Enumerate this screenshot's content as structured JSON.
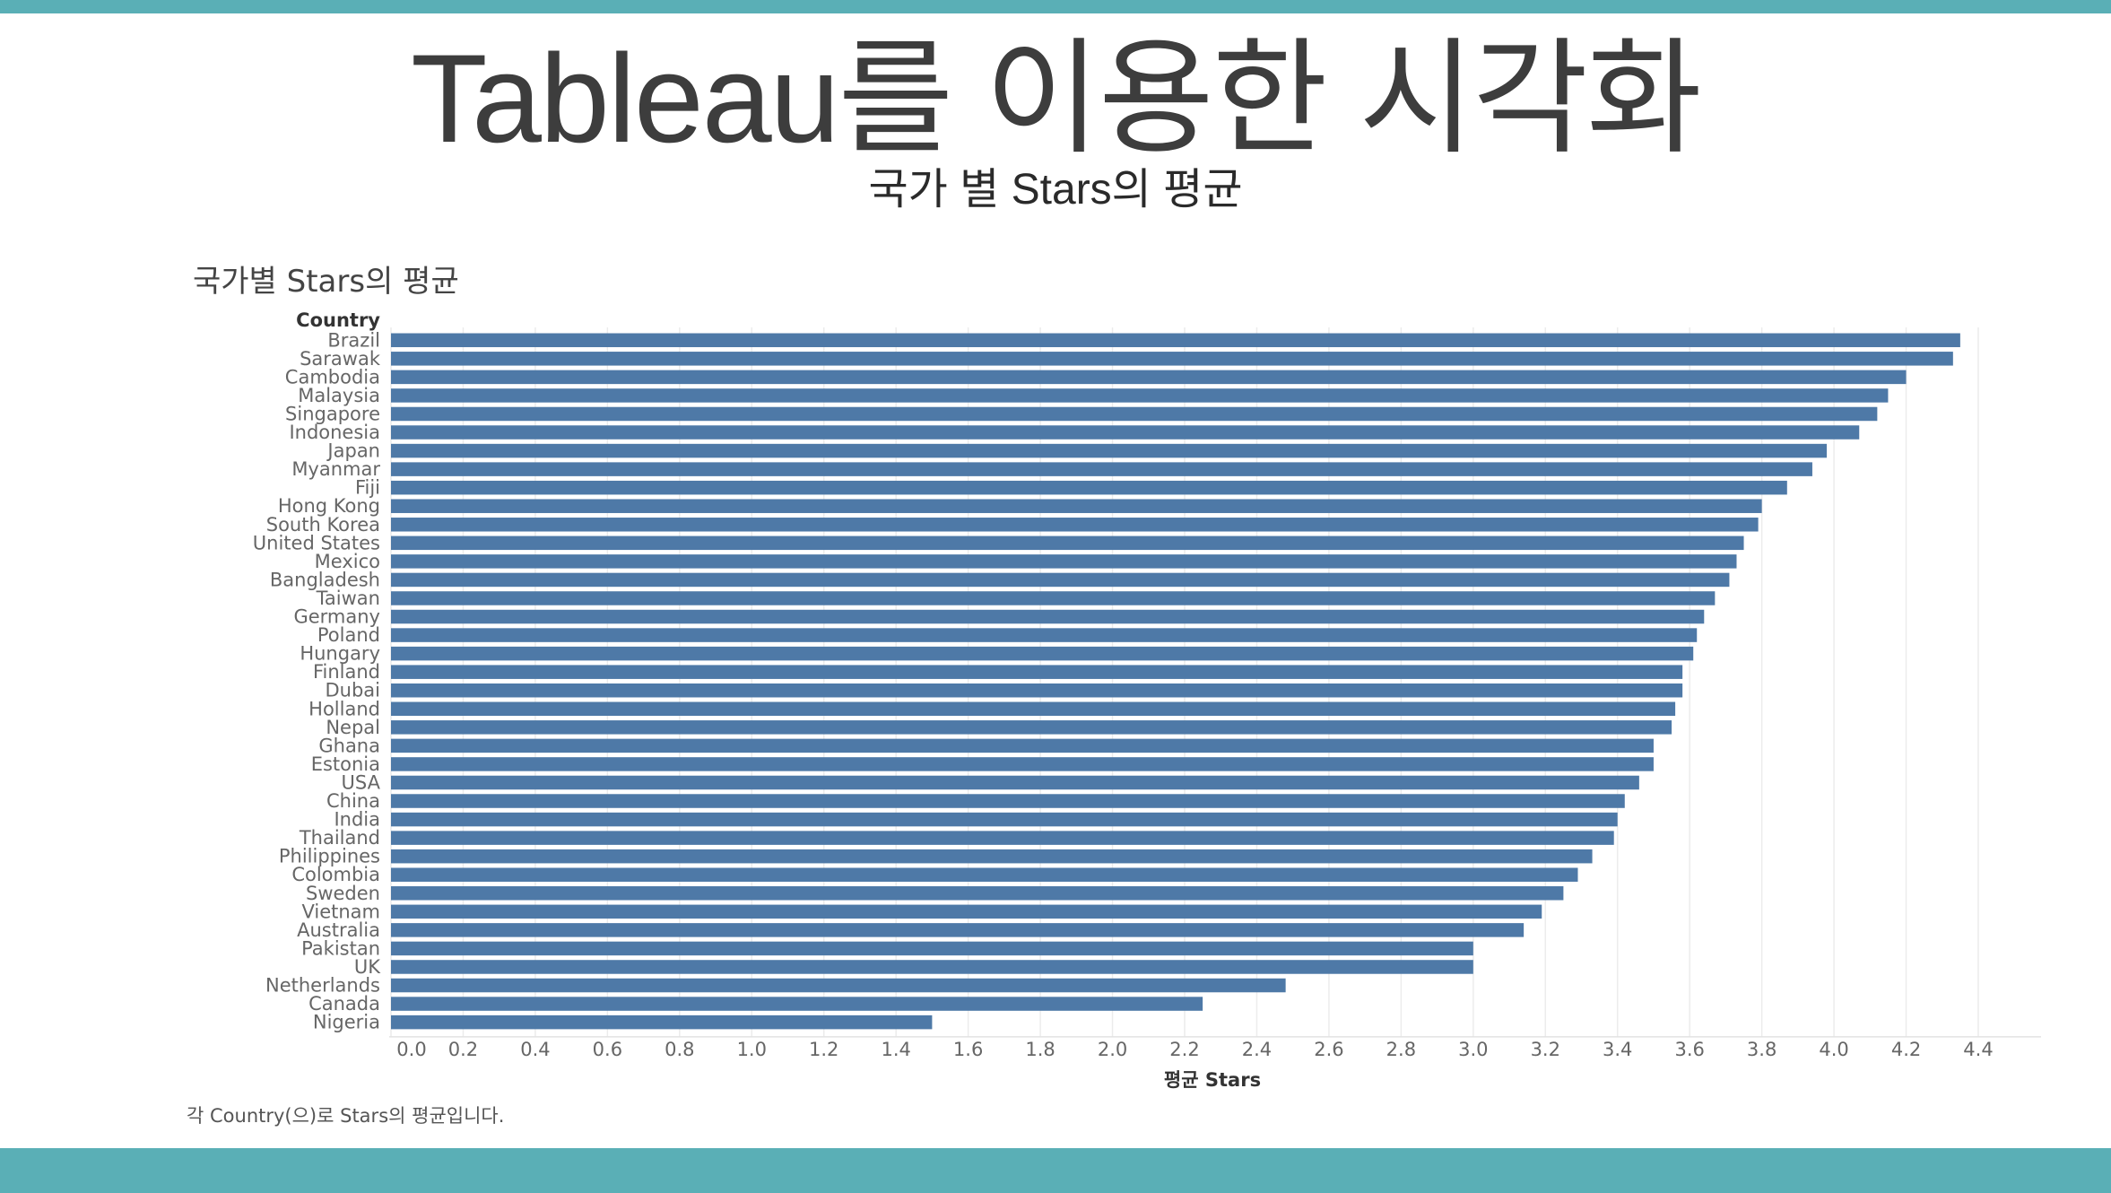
{
  "slide": {
    "title": "Tableau를 이용한 시각화",
    "subtitle": "국가 별 Stars의 평균"
  },
  "sheet": {
    "title": "국가별 Stars의 평균",
    "caption": "각 Country(으)로 Stars의 평균입니다."
  },
  "colors": {
    "accent_band": "#5aafb6",
    "bar": "#4e79a7"
  },
  "chart_data": {
    "type": "bar",
    "orientation": "horizontal",
    "row_header": "Country",
    "xlabel": "평균 Stars",
    "xlim": [
      0,
      4.4
    ],
    "ticks": [
      "0.0",
      "0.2",
      "0.4",
      "0.6",
      "0.8",
      "1.0",
      "1.2",
      "1.4",
      "1.6",
      "1.8",
      "2.0",
      "2.2",
      "2.4",
      "2.6",
      "2.8",
      "3.0",
      "3.2",
      "3.4",
      "3.6",
      "3.8",
      "4.0",
      "4.2",
      "4.4"
    ],
    "grid": true,
    "categories": [
      "Brazil",
      "Sarawak",
      "Cambodia",
      "Malaysia",
      "Singapore",
      "Indonesia",
      "Japan",
      "Myanmar",
      "Fiji",
      "Hong Kong",
      "South Korea",
      "United States",
      "Mexico",
      "Bangladesh",
      "Taiwan",
      "Germany",
      "Poland",
      "Hungary",
      "Finland",
      "Dubai",
      "Holland",
      "Nepal",
      "Ghana",
      "Estonia",
      "USA",
      "China",
      "India",
      "Thailand",
      "Philippines",
      "Colombia",
      "Sweden",
      "Vietnam",
      "Australia",
      "Pakistan",
      "UK",
      "Netherlands",
      "Canada",
      "Nigeria"
    ],
    "values": [
      4.35,
      4.33,
      4.2,
      4.15,
      4.12,
      4.07,
      3.98,
      3.94,
      3.87,
      3.8,
      3.79,
      3.75,
      3.73,
      3.71,
      3.67,
      3.64,
      3.62,
      3.61,
      3.58,
      3.58,
      3.56,
      3.55,
      3.5,
      3.5,
      3.46,
      3.42,
      3.4,
      3.39,
      3.33,
      3.29,
      3.25,
      3.19,
      3.14,
      3.0,
      3.0,
      2.48,
      2.25,
      1.5
    ]
  }
}
